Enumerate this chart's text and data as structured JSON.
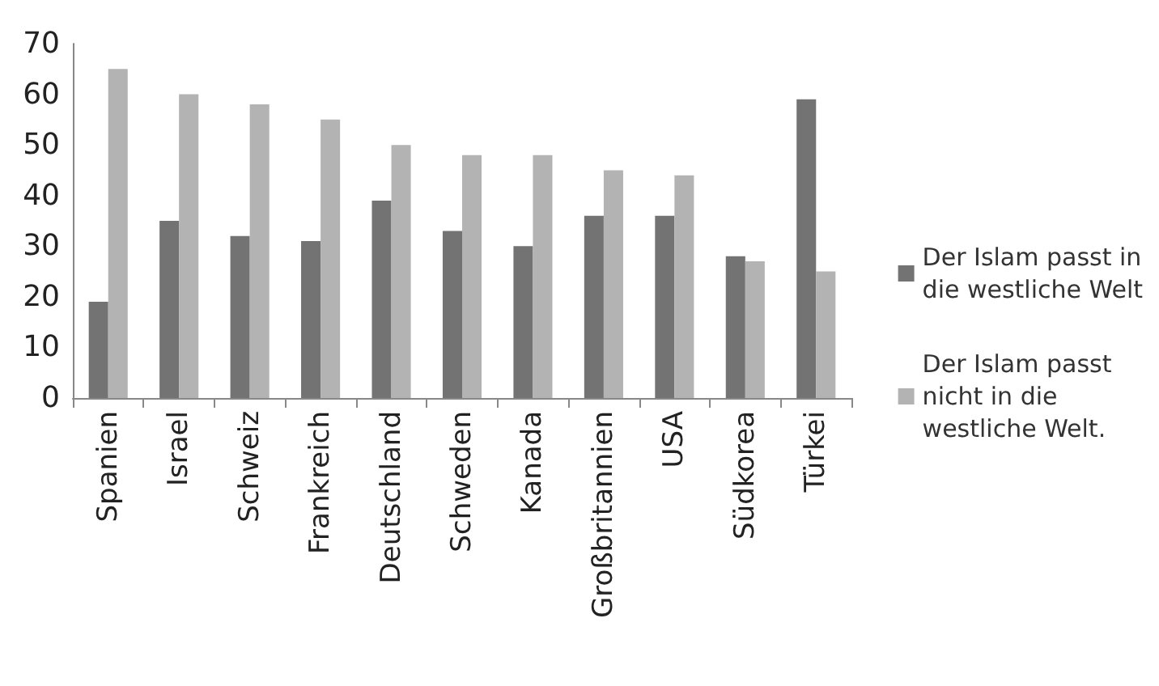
{
  "chart_data": {
    "type": "bar",
    "categories": [
      "Spanien",
      "Israel",
      "Schweiz",
      "Frankreich",
      "Deutschland",
      "Schweden",
      "Kanada",
      "Großbritannien",
      "USA",
      "Südkorea",
      "Türkei"
    ],
    "series": [
      {
        "name": "Der Islam passt in die westliche Welt",
        "color": "#737373",
        "values": [
          19,
          35,
          32,
          31,
          39,
          33,
          30,
          36,
          36,
          28,
          59
        ]
      },
      {
        "name": "Der Islam passt nicht in die westliche Welt.",
        "color": "#b3b3b3",
        "values": [
          65,
          60,
          58,
          55,
          50,
          48,
          48,
          45,
          44,
          27,
          25
        ]
      }
    ],
    "ylim": [
      0,
      70
    ],
    "yticks": [
      0,
      10,
      20,
      30,
      40,
      50,
      60,
      70
    ],
    "grid": false,
    "legend": "right"
  }
}
